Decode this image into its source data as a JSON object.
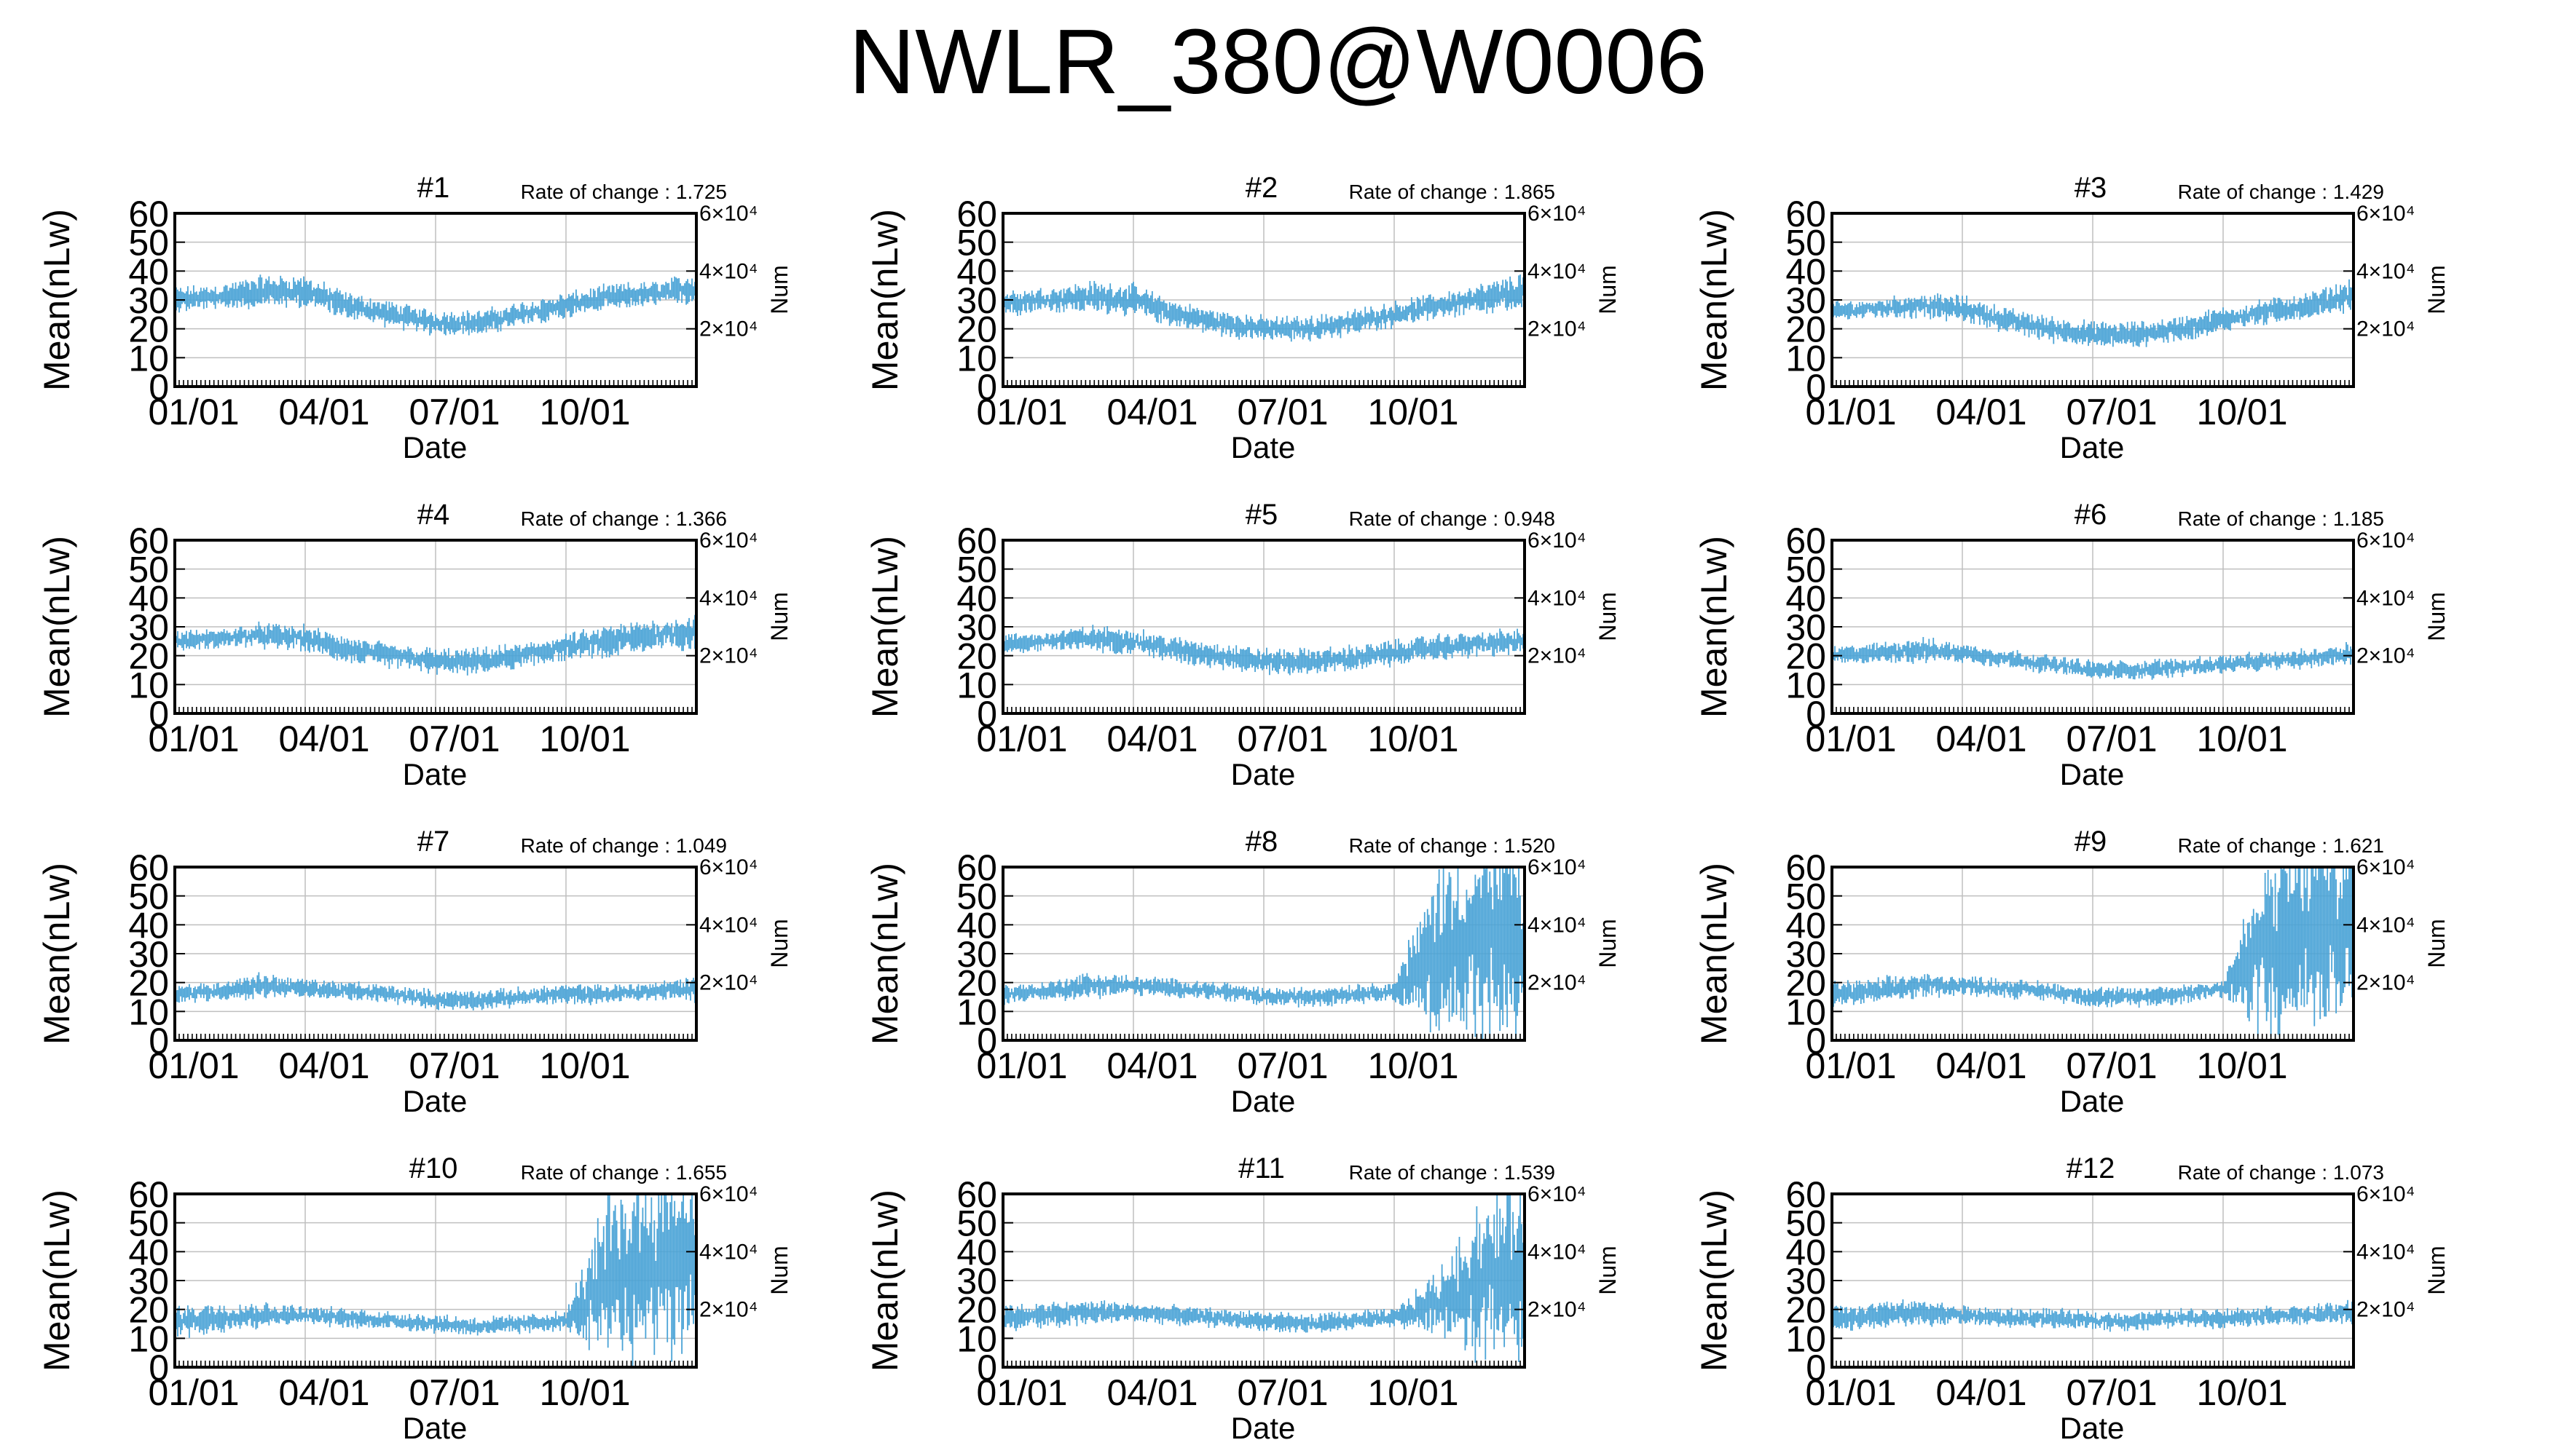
{
  "title": "NWLR_380@W0006",
  "chart_data": [
    {
      "type": "line",
      "title": "#1",
      "rate_label": "Rate of change : 1.725",
      "xlabel": "Date",
      "ylabel": "Mean(nLw)",
      "y2label": "Num",
      "x_ticks": [
        "01/01",
        "04/01",
        "07/01",
        "10/01"
      ],
      "ylim": [
        0,
        60
      ],
      "yticks": [
        0,
        10,
        20,
        30,
        40,
        50,
        60
      ],
      "y2_ticks": [
        "2×10⁴",
        "4×10⁴",
        "6×10⁴"
      ],
      "grid": true,
      "series_color": "#4aa3d6",
      "series": [
        {
          "name": "",
          "x_months": [
            0,
            1,
            2,
            3,
            4,
            5,
            6,
            7,
            8,
            9,
            10,
            11,
            12
          ],
          "mean": [
            30,
            31,
            33,
            33,
            28,
            25,
            22,
            22,
            25,
            28,
            31,
            32,
            34
          ],
          "spread": [
            4,
            4,
            5,
            5,
            4,
            4,
            4,
            4,
            4,
            4,
            4,
            4,
            5
          ]
        }
      ]
    },
    {
      "type": "line",
      "title": "#2",
      "rate_label": "Rate of change : 1.865",
      "xlabel": "Date",
      "ylabel": "Mean(nLw)",
      "y2label": "Num",
      "x_ticks": [
        "01/01",
        "04/01",
        "07/01",
        "10/01"
      ],
      "ylim": [
        0,
        60
      ],
      "yticks": [
        0,
        10,
        20,
        30,
        40,
        50,
        60
      ],
      "y2_ticks": [
        "2×10⁴",
        "4×10⁴",
        "6×10⁴"
      ],
      "grid": true,
      "series_color": "#4aa3d6",
      "series": [
        {
          "name": "",
          "x_months": [
            0,
            1,
            2,
            3,
            4,
            5,
            6,
            7,
            8,
            9,
            10,
            11,
            12
          ],
          "mean": [
            29,
            30,
            31,
            30,
            25,
            22,
            20,
            20,
            22,
            25,
            28,
            30,
            33
          ],
          "spread": [
            4,
            4,
            5,
            5,
            4,
            4,
            4,
            4,
            4,
            4,
            4,
            5,
            6
          ]
        }
      ]
    },
    {
      "type": "line",
      "title": "#3",
      "rate_label": "Rate of change : 1.429",
      "xlabel": "Date",
      "ylabel": "Mean(nLw)",
      "y2label": "Num",
      "x_ticks": [
        "01/01",
        "04/01",
        "07/01",
        "10/01"
      ],
      "ylim": [
        0,
        60
      ],
      "yticks": [
        0,
        10,
        20,
        30,
        40,
        50,
        60
      ],
      "y2_ticks": [
        "2×10⁴",
        "4×10⁴",
        "6×10⁴"
      ],
      "grid": true,
      "series_color": "#4aa3d6",
      "series": [
        {
          "name": "",
          "x_months": [
            0,
            1,
            2,
            3,
            4,
            5,
            6,
            7,
            8,
            9,
            10,
            11,
            12
          ],
          "mean": [
            26,
            27,
            28,
            27,
            23,
            20,
            18,
            18,
            20,
            23,
            26,
            28,
            32
          ],
          "spread": [
            3,
            3,
            4,
            4,
            4,
            4,
            4,
            4,
            4,
            4,
            4,
            4,
            5
          ]
        }
      ]
    },
    {
      "type": "line",
      "title": "#4",
      "rate_label": "Rate of change : 1.366",
      "xlabel": "Date",
      "ylabel": "Mean(nLw)",
      "y2label": "Num",
      "x_ticks": [
        "01/01",
        "04/01",
        "07/01",
        "10/01"
      ],
      "ylim": [
        0,
        60
      ],
      "yticks": [
        0,
        10,
        20,
        30,
        40,
        50,
        60
      ],
      "y2_ticks": [
        "2×10⁴",
        "4×10⁴",
        "6×10⁴"
      ],
      "grid": true,
      "series_color": "#4aa3d6",
      "series": [
        {
          "name": "",
          "x_months": [
            0,
            1,
            2,
            3,
            4,
            5,
            6,
            7,
            8,
            9,
            10,
            11,
            12
          ],
          "mean": [
            25,
            26,
            27,
            26,
            22,
            20,
            18,
            18,
            20,
            23,
            25,
            27,
            28
          ],
          "spread": [
            3,
            3,
            4,
            4,
            4,
            4,
            4,
            4,
            4,
            4,
            5,
            5,
            6
          ]
        }
      ]
    },
    {
      "type": "line",
      "title": "#5",
      "rate_label": "Rate of change : 0.948",
      "xlabel": "Date",
      "ylabel": "Mean(nLw)",
      "y2label": "Num",
      "x_ticks": [
        "01/01",
        "04/01",
        "07/01",
        "10/01"
      ],
      "ylim": [
        0,
        60
      ],
      "yticks": [
        0,
        10,
        20,
        30,
        40,
        50,
        60
      ],
      "y2_ticks": [
        "2×10⁴",
        "4×10⁴",
        "6×10⁴"
      ],
      "grid": true,
      "series_color": "#4aa3d6",
      "series": [
        {
          "name": "",
          "x_months": [
            0,
            1,
            2,
            3,
            4,
            5,
            6,
            7,
            8,
            9,
            10,
            11,
            12
          ],
          "mean": [
            24,
            25,
            26,
            25,
            22,
            20,
            18,
            18,
            19,
            21,
            23,
            24,
            25
          ],
          "spread": [
            3,
            3,
            4,
            4,
            4,
            4,
            4,
            4,
            4,
            4,
            4,
            4,
            4
          ]
        }
      ]
    },
    {
      "type": "line",
      "title": "#6",
      "rate_label": "Rate of change : 1.185",
      "xlabel": "Date",
      "ylabel": "Mean(nLw)",
      "y2label": "Num",
      "x_ticks": [
        "01/01",
        "04/01",
        "07/01",
        "10/01"
      ],
      "ylim": [
        0,
        60
      ],
      "yticks": [
        0,
        10,
        20,
        30,
        40,
        50,
        60
      ],
      "y2_ticks": [
        "2×10⁴",
        "4×10⁴",
        "6×10⁴"
      ],
      "grid": true,
      "series_color": "#4aa3d6",
      "series": [
        {
          "name": "",
          "x_months": [
            0,
            1,
            2,
            3,
            4,
            5,
            6,
            7,
            8,
            9,
            10,
            11,
            12
          ],
          "mean": [
            20,
            21,
            22,
            21,
            19,
            17,
            15,
            15,
            16,
            17,
            18,
            19,
            21
          ],
          "spread": [
            3,
            3,
            4,
            3,
            3,
            3,
            3,
            3,
            3,
            3,
            3,
            3,
            4
          ]
        }
      ]
    },
    {
      "type": "line",
      "title": "#7",
      "rate_label": "Rate of change : 1.049",
      "xlabel": "Date",
      "ylabel": "Mean(nLw)",
      "y2label": "Num",
      "x_ticks": [
        "01/01",
        "04/01",
        "07/01",
        "10/01"
      ],
      "ylim": [
        0,
        60
      ],
      "yticks": [
        0,
        10,
        20,
        30,
        40,
        50,
        60
      ],
      "y2_ticks": [
        "2×10⁴",
        "4×10⁴",
        "6×10⁴"
      ],
      "grid": true,
      "series_color": "#4aa3d6",
      "series": [
        {
          "name": "",
          "x_months": [
            0,
            1,
            2,
            3,
            4,
            5,
            6,
            7,
            8,
            9,
            10,
            11,
            12
          ],
          "mean": [
            16,
            17,
            19,
            18,
            17,
            16,
            14,
            14,
            15,
            16,
            16,
            17,
            18
          ],
          "spread": [
            3,
            3,
            4,
            3,
            3,
            3,
            3,
            3,
            3,
            3,
            3,
            3,
            4
          ]
        }
      ]
    },
    {
      "type": "line",
      "title": "#8",
      "rate_label": "Rate of change : 1.520",
      "xlabel": "Date",
      "ylabel": "Mean(nLw)",
      "y2label": "Num",
      "x_ticks": [
        "01/01",
        "04/01",
        "07/01",
        "10/01"
      ],
      "ylim": [
        0,
        60
      ],
      "yticks": [
        0,
        10,
        20,
        30,
        40,
        50,
        60
      ],
      "y2_ticks": [
        "2×10⁴",
        "4×10⁴",
        "6×10⁴"
      ],
      "grid": true,
      "series_color": "#4aa3d6",
      "series": [
        {
          "name": "",
          "x_months": [
            0,
            1,
            2,
            3,
            4,
            5,
            6,
            7,
            8,
            9,
            10,
            11,
            12
          ],
          "mean": [
            16,
            17,
            19,
            19,
            18,
            17,
            15,
            15,
            16,
            17,
            30,
            35,
            35
          ],
          "spread": [
            3,
            3,
            4,
            3,
            3,
            3,
            3,
            3,
            3,
            3,
            28,
            30,
            30
          ]
        }
      ]
    },
    {
      "type": "line",
      "title": "#9",
      "rate_label": "Rate of change : 1.621",
      "xlabel": "Date",
      "ylabel": "Mean(nLw)",
      "y2label": "Num",
      "x_ticks": [
        "01/01",
        "04/01",
        "07/01",
        "10/01"
      ],
      "ylim": [
        0,
        60
      ],
      "yticks": [
        0,
        10,
        20,
        30,
        40,
        50,
        60
      ],
      "y2_ticks": [
        "2×10⁴",
        "4×10⁴",
        "6×10⁴"
      ],
      "grid": true,
      "series_color": "#4aa3d6",
      "series": [
        {
          "name": "",
          "x_months": [
            0,
            1,
            2,
            3,
            4,
            5,
            6,
            7,
            8,
            9,
            10,
            11,
            12
          ],
          "mean": [
            16,
            17,
            19,
            19,
            18,
            17,
            15,
            15,
            16,
            18,
            32,
            38,
            40
          ],
          "spread": [
            4,
            4,
            4,
            3,
            3,
            3,
            3,
            3,
            3,
            3,
            28,
            30,
            30
          ]
        }
      ]
    },
    {
      "type": "line",
      "title": "#10",
      "rate_label": "Rate of change : 1.655",
      "xlabel": "Date",
      "ylabel": "Mean(nLw)",
      "y2label": "Num",
      "x_ticks": [
        "01/01",
        "04/01",
        "07/01",
        "10/01"
      ],
      "ylim": [
        0,
        60
      ],
      "yticks": [
        0,
        10,
        20,
        30,
        40,
        50,
        60
      ],
      "y2_ticks": [
        "2×10⁴",
        "4×10⁴",
        "6×10⁴"
      ],
      "grid": true,
      "series_color": "#4aa3d6",
      "series": [
        {
          "name": "",
          "x_months": [
            0,
            1,
            2,
            3,
            4,
            5,
            6,
            7,
            8,
            9,
            10,
            11,
            12
          ],
          "mean": [
            16,
            17,
            18,
            18,
            17,
            16,
            15,
            14,
            15,
            16,
            30,
            36,
            38
          ],
          "spread": [
            5,
            5,
            4,
            3,
            3,
            3,
            3,
            3,
            3,
            3,
            28,
            30,
            30
          ]
        }
      ]
    },
    {
      "type": "line",
      "title": "#11",
      "rate_label": "Rate of change : 1.539",
      "xlabel": "Date",
      "ylabel": "Mean(nLw)",
      "y2label": "Num",
      "x_ticks": [
        "01/01",
        "04/01",
        "07/01",
        "10/01"
      ],
      "ylim": [
        0,
        60
      ],
      "yticks": [
        0,
        10,
        20,
        30,
        40,
        50,
        60
      ],
      "y2_ticks": [
        "2×10⁴",
        "4×10⁴",
        "6×10⁴"
      ],
      "grid": true,
      "series_color": "#4aa3d6",
      "series": [
        {
          "name": "",
          "x_months": [
            0,
            1,
            2,
            3,
            4,
            5,
            6,
            7,
            8,
            9,
            10,
            11,
            12
          ],
          "mean": [
            17,
            18,
            19,
            19,
            18,
            17,
            16,
            15,
            16,
            17,
            22,
            30,
            35
          ],
          "spread": [
            4,
            4,
            4,
            3,
            3,
            3,
            3,
            3,
            3,
            3,
            10,
            25,
            28
          ]
        }
      ]
    },
    {
      "type": "line",
      "title": "#12",
      "rate_label": "Rate of change : 1.073",
      "xlabel": "Date",
      "ylabel": "Mean(nLw)",
      "y2label": "Num",
      "x_ticks": [
        "01/01",
        "04/01",
        "07/01",
        "10/01"
      ],
      "ylim": [
        0,
        60
      ],
      "yticks": [
        0,
        10,
        20,
        30,
        40,
        50,
        60
      ],
      "y2_ticks": [
        "2×10⁴",
        "4×10⁴",
        "6×10⁴"
      ],
      "grid": true,
      "series_color": "#4aa3d6",
      "series": [
        {
          "name": "",
          "x_months": [
            0,
            1,
            2,
            3,
            4,
            5,
            6,
            7,
            8,
            9,
            10,
            11,
            12
          ],
          "mean": [
            17,
            18,
            19,
            18,
            17,
            17,
            16,
            16,
            17,
            17,
            18,
            18,
            19
          ],
          "spread": [
            4,
            4,
            4,
            3,
            3,
            3,
            3,
            3,
            3,
            3,
            3,
            3,
            4
          ]
        }
      ]
    }
  ]
}
